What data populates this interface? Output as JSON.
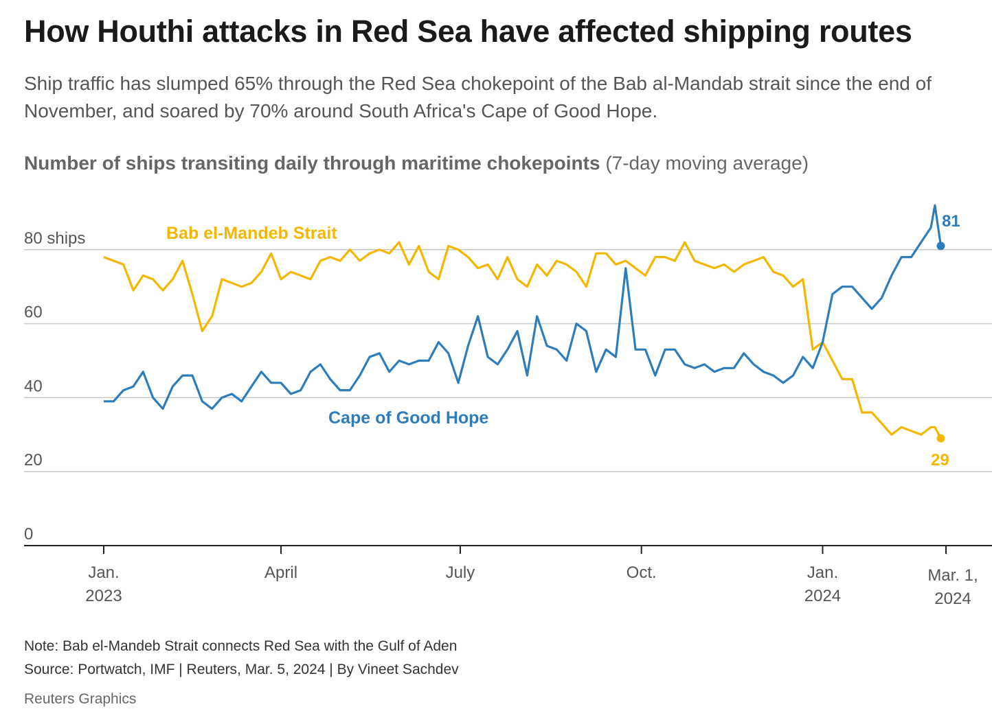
{
  "title": "How Houthi attacks in Red Sea have affected shipping routes",
  "subtitle": "Ship traffic has slumped 65% through the Red Sea chokepoint of the Bab al-Mandab strait since the end of November, and soared by 70% around South Africa's Cape of Good Hope.",
  "chart_heading": {
    "bold": "Number of ships transiting daily through maritime chokepoints",
    "light": " (7-day moving average)"
  },
  "footer": {
    "note": "Note: Bab el-Mandeb Strait connects Red Sea with the Gulf of Aden",
    "source": "Source: Portwatch, IMF | Reuters, Mar. 5, 2024 | By Vineet Sachdev",
    "brand": "Reuters Graphics"
  },
  "chart_data": {
    "type": "line",
    "title": "Number of ships transiting daily through maritime chokepoints (7-day moving average)",
    "xlabel": "",
    "ylabel": "ships",
    "ylim": [
      0,
      90
    ],
    "yticks": [
      {
        "value": 0,
        "label": "0"
      },
      {
        "value": 20,
        "label": "20"
      },
      {
        "value": 40,
        "label": "40"
      },
      {
        "value": 60,
        "label": "60"
      },
      {
        "value": 80,
        "label": "80 ships"
      }
    ],
    "x_unit": "days since Jan. 1, 2023",
    "xlim": [
      -40,
      442
    ],
    "xticks": [
      {
        "day": 0,
        "line1": "Jan.",
        "line2": "2023"
      },
      {
        "day": 90,
        "line1": "April",
        "line2": ""
      },
      {
        "day": 181,
        "line1": "July",
        "line2": ""
      },
      {
        "day": 273,
        "line1": "Oct.",
        "line2": ""
      },
      {
        "day": 365,
        "line1": "Jan.",
        "line2": "2024"
      },
      {
        "day": 425,
        "line1": "Mar. 1,",
        "line2": "2024"
      }
    ],
    "grid": true,
    "x": [
      0,
      5,
      10,
      15,
      20,
      25,
      30,
      35,
      40,
      45,
      50,
      55,
      60,
      65,
      70,
      75,
      80,
      85,
      90,
      95,
      100,
      105,
      110,
      115,
      120,
      125,
      130,
      135,
      140,
      145,
      150,
      155,
      160,
      165,
      170,
      175,
      180,
      185,
      190,
      195,
      200,
      205,
      210,
      215,
      220,
      225,
      230,
      235,
      240,
      245,
      250,
      255,
      260,
      265,
      270,
      275,
      280,
      285,
      290,
      295,
      300,
      305,
      310,
      315,
      320,
      325,
      330,
      335,
      340,
      345,
      350,
      355,
      360,
      365,
      370,
      375,
      380,
      385,
      390,
      395,
      400,
      405,
      410,
      415,
      420,
      422,
      425
    ],
    "series": [
      {
        "name": "Bab el-Mandeb Strait",
        "color": "#f3b700",
        "end_label": "29",
        "values": [
          78,
          77,
          76,
          69,
          73,
          72,
          69,
          72,
          77,
          68,
          58,
          62,
          72,
          71,
          70,
          71,
          74,
          79,
          72,
          74,
          73,
          72,
          77,
          78,
          77,
          80,
          77,
          79,
          80,
          79,
          82,
          76,
          81,
          74,
          72,
          81,
          80,
          78,
          75,
          76,
          72,
          78,
          72,
          70,
          76,
          73,
          77,
          76,
          74,
          70,
          79,
          79,
          76,
          77,
          75,
          73,
          78,
          78,
          77,
          82,
          77,
          76,
          75,
          76,
          74,
          76,
          77,
          78,
          74,
          73,
          70,
          72,
          53,
          55,
          50,
          45,
          45,
          36,
          36,
          33,
          30,
          32,
          31,
          30,
          32,
          32,
          29
        ]
      },
      {
        "name": "Cape of Good Hope",
        "color": "#2e7dba",
        "end_label": "81",
        "values": [
          39,
          39,
          42,
          43,
          47,
          40,
          37,
          43,
          46,
          46,
          39,
          37,
          40,
          41,
          39,
          43,
          47,
          44,
          44,
          41,
          42,
          47,
          49,
          45,
          42,
          42,
          46,
          51,
          52,
          47,
          50,
          49,
          50,
          50,
          55,
          52,
          44,
          54,
          62,
          51,
          49,
          53,
          58,
          46,
          62,
          54,
          53,
          50,
          60,
          58,
          47,
          53,
          51,
          75,
          53,
          53,
          46,
          53,
          53,
          49,
          48,
          49,
          47,
          48,
          48,
          52,
          49,
          47,
          46,
          44,
          46,
          51,
          48,
          55,
          68,
          70,
          70,
          67,
          64,
          67,
          73,
          78,
          78,
          82,
          86,
          92,
          81
        ]
      }
    ]
  }
}
